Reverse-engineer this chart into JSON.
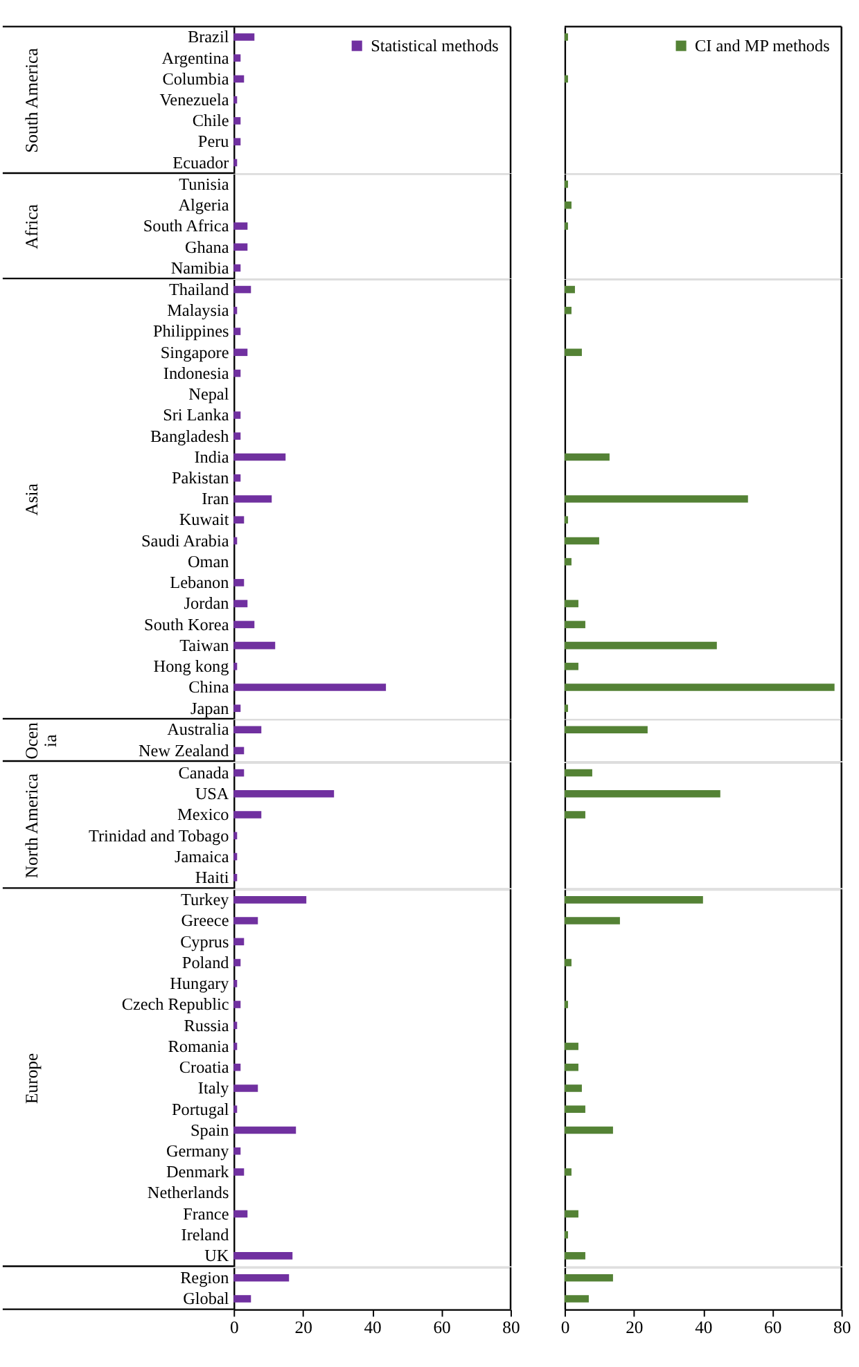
{
  "chart_data": [
    {
      "type": "bar",
      "orientation": "horizontal",
      "ylabel": "South America",
      "categories": [
        "Brazil",
        "Argentina",
        "Columbia",
        "Venezuela",
        "Chile",
        "Peru",
        "Ecuador"
      ],
      "series": [
        {
          "name": "Statistical methods",
          "color": "#7030a0",
          "values": [
            6,
            2,
            3,
            1,
            2,
            2,
            1
          ]
        }
      ],
      "xlim": [
        0,
        80
      ],
      "legend": "top right",
      "tick_labels": "y"
    },
    {
      "type": "bar",
      "orientation": "horizontal",
      "ylabel": "Africa",
      "categories": [
        "Tunisia",
        "Algeria",
        "South Africa",
        "Ghana",
        "Namibia"
      ],
      "series": [
        {
          "color": "#7030a0",
          "values": [
            0,
            0,
            4,
            4,
            2
          ]
        }
      ],
      "xlim": [
        0,
        80
      ],
      "tick_labels": "y"
    },
    {
      "type": "bar",
      "orientation": "horizontal",
      "ylabel": "Asia",
      "categories": [
        "Thailand",
        "Malaysia",
        "Philippines",
        "Singapore",
        "Indonesia",
        "Nepal",
        "Sri Lanka",
        "Bangladesh",
        "India",
        "Pakistan",
        "Iran",
        "Kuwait",
        "Saudi Arabia",
        "Oman",
        "Lebanon",
        "Jordan",
        "South Korea",
        "Taiwan",
        "Hong kong",
        "China",
        "Japan"
      ],
      "series": [
        {
          "color": "#7030a0",
          "values": [
            5,
            1,
            2,
            4,
            2,
            0,
            2,
            2,
            15,
            2,
            11,
            3,
            1,
            0,
            3,
            4,
            6,
            12,
            1,
            44,
            2
          ]
        }
      ],
      "xlim": [
        0,
        80
      ],
      "tick_labels": "y"
    },
    {
      "type": "bar",
      "orientation": "horizontal",
      "ylabel": "Ocen\nia",
      "categories": [
        "Australia",
        "New Zealand"
      ],
      "series": [
        {
          "color": "#7030a0",
          "values": [
            8,
            3
          ]
        }
      ],
      "xlim": [
        0,
        80
      ],
      "tick_labels": "y"
    },
    {
      "type": "bar",
      "orientation": "horizontal",
      "ylabel": "North America",
      "categories": [
        "Canada",
        "USA",
        "Mexico",
        "Trinidad and Tobago",
        "Jamaica",
        "Haiti"
      ],
      "series": [
        {
          "color": "#7030a0",
          "values": [
            3,
            29,
            8,
            1,
            1,
            1
          ]
        }
      ],
      "xlim": [
        0,
        80
      ],
      "tick_labels": "y"
    },
    {
      "type": "bar",
      "orientation": "horizontal",
      "ylabel": "Europe",
      "categories": [
        "Turkey",
        "Greece",
        "Cyprus",
        "Poland",
        "Hungary",
        "Czech Republic",
        "Russia",
        "Romania",
        "Croatia",
        "Italy",
        "Portugal",
        "Spain",
        "Germany",
        "Denmark",
        "Netherlands",
        "France",
        "Ireland",
        "UK"
      ],
      "series": [
        {
          "color": "#7030a0",
          "values": [
            21,
            7,
            3,
            2,
            1,
            2,
            1,
            1,
            2,
            7,
            1,
            18,
            2,
            3,
            0,
            4,
            0,
            17
          ]
        }
      ],
      "xlim": [
        0,
        80
      ],
      "tick_labels": "y"
    },
    {
      "type": "bar",
      "orientation": "horizontal",
      "categories": [
        "Region",
        "Global"
      ],
      "series": [
        {
          "color": "#7030a0",
          "values": [
            16,
            5
          ]
        }
      ],
      "xlim": [
        0,
        80
      ],
      "xticks": [
        0,
        20,
        40,
        60,
        80
      ]
    },
    {
      "type": "bar",
      "orientation": "horizontal",
      "categories": [
        null,
        null,
        null,
        null,
        null,
        null,
        null
      ],
      "series": [
        {
          "name": "CI and MP methods",
          "color": "#548235",
          "values": [
            1,
            0,
            1,
            0,
            0,
            0,
            0
          ]
        }
      ],
      "xlim": [
        0,
        80
      ],
      "legend": "top right",
      "tick_labels": false
    },
    {
      "type": "bar",
      "orientation": "horizontal",
      "categories": [
        null,
        null,
        null,
        null,
        null
      ],
      "series": [
        {
          "color": "#548235",
          "values": [
            1,
            2,
            1,
            0,
            0
          ]
        }
      ],
      "xlim": [
        0,
        80
      ],
      "tick_labels": false
    },
    {
      "type": "bar",
      "orientation": "horizontal",
      "categories": [
        null,
        null,
        null,
        null,
        null,
        null,
        null,
        null,
        null,
        null,
        null,
        null,
        null,
        null,
        null,
        null,
        null,
        null,
        null,
        null,
        null
      ],
      "series": [
        {
          "color": "#548235",
          "values": [
            3,
            2,
            0,
            5,
            0,
            0,
            0,
            0,
            13,
            0,
            53,
            1,
            10,
            2,
            0,
            4,
            6,
            44,
            4,
            78,
            1
          ]
        }
      ],
      "xlim": [
        0,
        80
      ],
      "tick_labels": false
    },
    {
      "type": "bar",
      "orientation": "horizontal",
      "categories": [
        null,
        null
      ],
      "series": [
        {
          "color": "#548235",
          "values": [
            24,
            0
          ]
        }
      ],
      "xlim": [
        0,
        80
      ],
      "tick_labels": false
    },
    {
      "type": "bar",
      "orientation": "horizontal",
      "categories": [
        null,
        null,
        null,
        null,
        null,
        null
      ],
      "series": [
        {
          "color": "#548235",
          "values": [
            8,
            45,
            6,
            0,
            0,
            0
          ]
        }
      ],
      "xlim": [
        0,
        80
      ],
      "tick_labels": false
    },
    {
      "type": "bar",
      "orientation": "horizontal",
      "categories": [
        null,
        null,
        null,
        null,
        null,
        null,
        null,
        null,
        null,
        null,
        null,
        null,
        null,
        null,
        null,
        null,
        null,
        null
      ],
      "series": [
        {
          "color": "#548235",
          "values": [
            40,
            16,
            0,
            2,
            0,
            1,
            0,
            4,
            4,
            5,
            6,
            14,
            0,
            2,
            0,
            4,
            1,
            6
          ]
        }
      ],
      "xlim": [
        0,
        80
      ],
      "tick_labels": false
    },
    {
      "type": "bar",
      "orientation": "horizontal",
      "categories": [
        null,
        null
      ],
      "series": [
        {
          "color": "#548235",
          "values": [
            14,
            7
          ]
        }
      ],
      "xlim": [
        0,
        80
      ],
      "xticks": [
        0,
        20,
        40,
        60,
        80
      ],
      "tick_labels": "x"
    }
  ]
}
